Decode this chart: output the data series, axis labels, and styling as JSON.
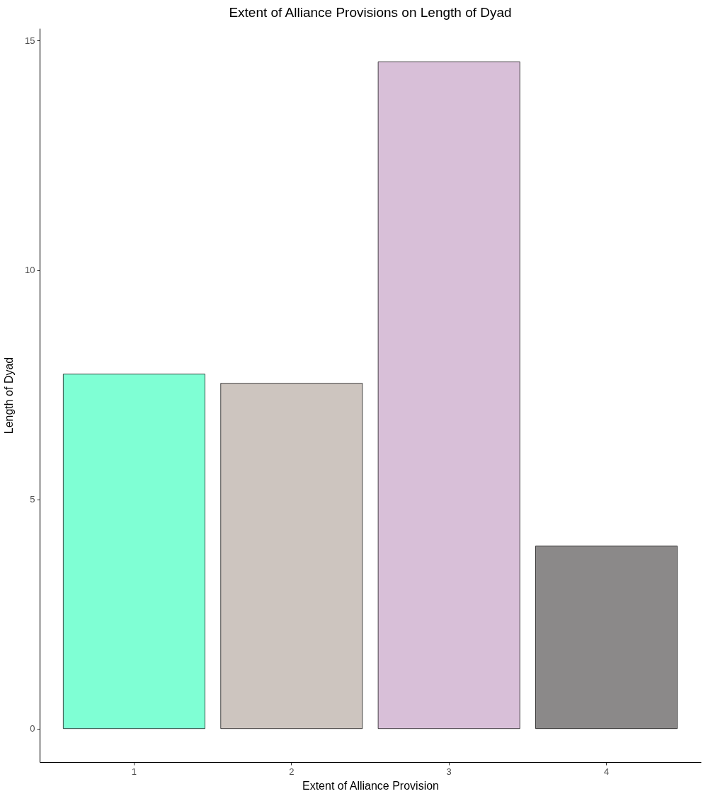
{
  "chart_data": {
    "type": "bar",
    "title": "Extent of Alliance Provisions on Length of Dyad",
    "xlabel": "Extent of Alliance Provision",
    "ylabel": "Length of Dyad",
    "categories": [
      "1",
      "2",
      "3",
      "4"
    ],
    "values": [
      7.73,
      7.53,
      14.54,
      3.98
    ],
    "colors": [
      "#7fffd4",
      "#cdc5bf",
      "#d8bfd8",
      "#8b8989"
    ],
    "ylim": [
      -0.73,
      15.27
    ],
    "yticks": [
      0,
      5,
      10,
      15
    ]
  }
}
